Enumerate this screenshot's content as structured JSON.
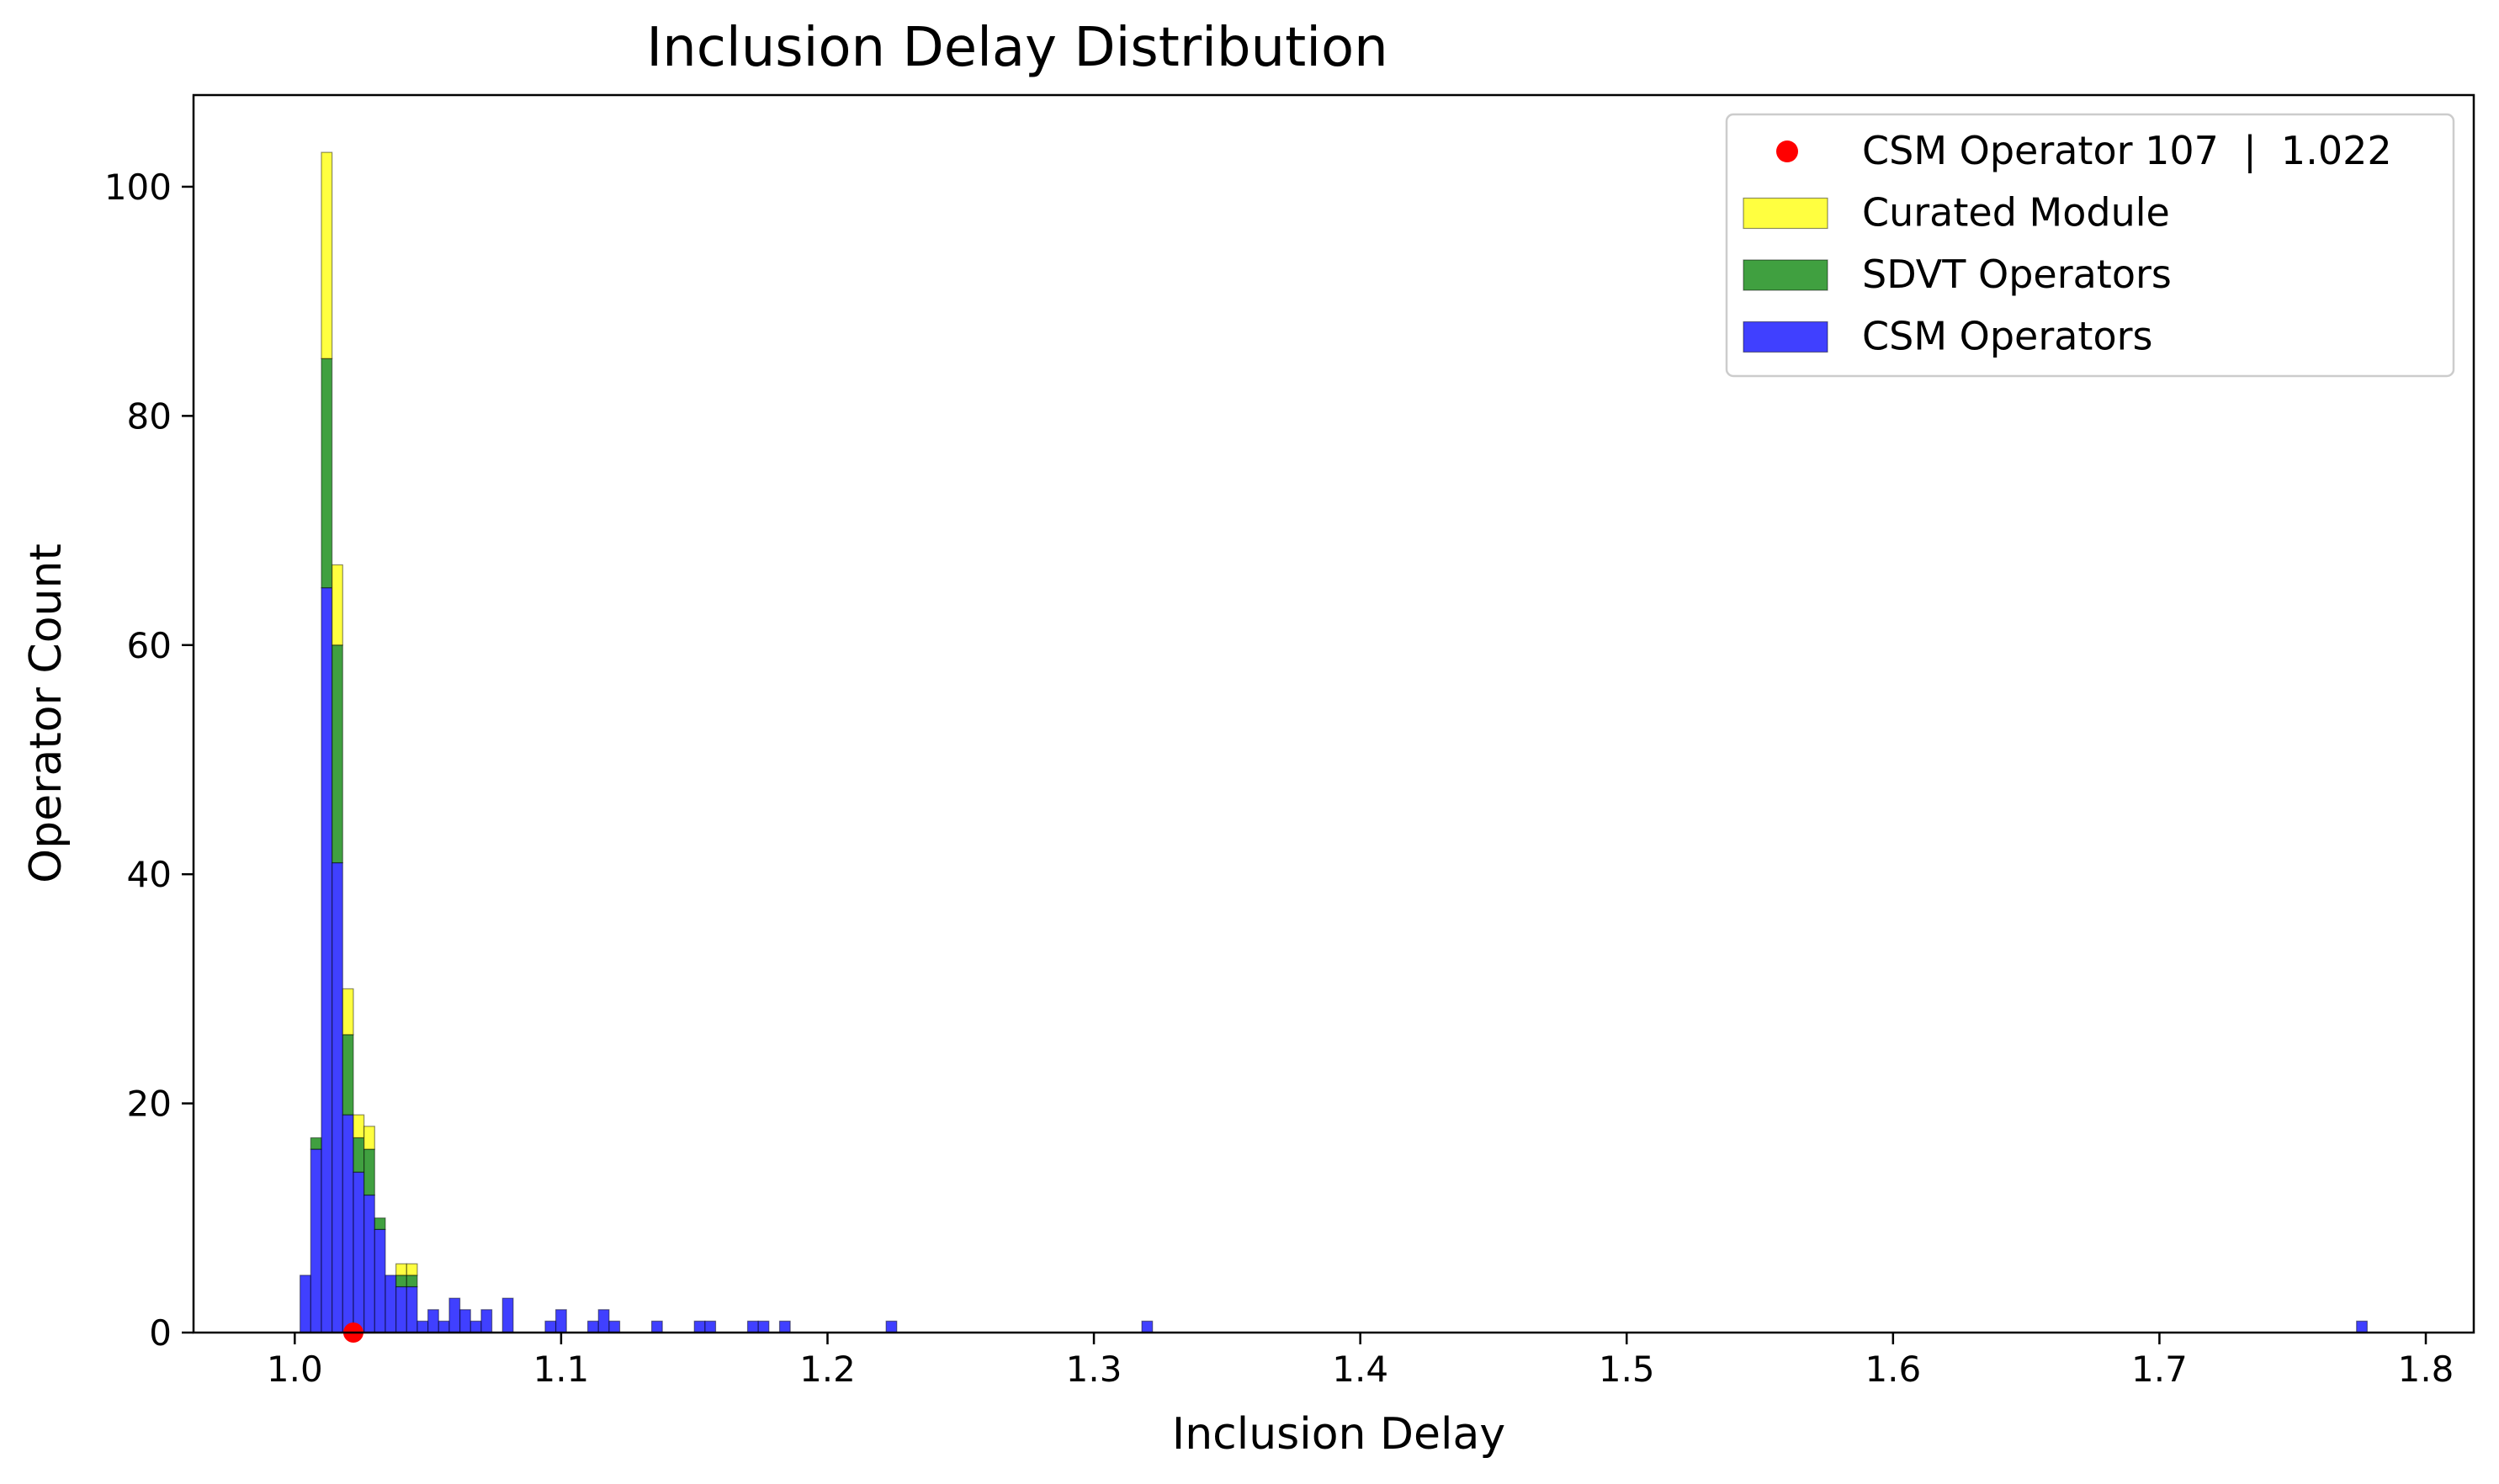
{
  "chart_data": {
    "type": "histogram",
    "title": "Inclusion Delay Distribution",
    "xlabel": "Inclusion Delay",
    "ylabel": "Operator Count",
    "xlim": [
      0.962,
      1.818
    ],
    "ylim": [
      0,
      108
    ],
    "xticks": [
      1.0,
      1.1,
      1.2,
      1.3,
      1.4,
      1.5,
      1.6,
      1.7,
      1.8
    ],
    "yticks": [
      0,
      20,
      40,
      60,
      80,
      100
    ],
    "bin_width": 0.004,
    "grid": false,
    "legend_position": "upper right",
    "stacking": "stacked: CSM Operators (bottom), SDVT Operators, Curated Module (top)",
    "colors": {
      "csm": "#0000ff",
      "sdvt": "#008000",
      "curated": "#ffff00",
      "highlight": "#ff0000"
    },
    "highlight_point": {
      "label": "CSM Operator 107  |  1.022",
      "x": 1.022,
      "y": 0
    },
    "series": [
      {
        "name": "CSM Operators",
        "color": "#0000ff",
        "bins": [
          {
            "x0": 1.002,
            "x1": 1.006,
            "count": 5
          },
          {
            "x0": 1.006,
            "x1": 1.01,
            "count": 16
          },
          {
            "x0": 1.01,
            "x1": 1.014,
            "count": 65
          },
          {
            "x0": 1.014,
            "x1": 1.018,
            "count": 41
          },
          {
            "x0": 1.018,
            "x1": 1.022,
            "count": 19
          },
          {
            "x0": 1.022,
            "x1": 1.026,
            "count": 14
          },
          {
            "x0": 1.026,
            "x1": 1.03,
            "count": 12
          },
          {
            "x0": 1.03,
            "x1": 1.034,
            "count": 9
          },
          {
            "x0": 1.034,
            "x1": 1.038,
            "count": 5
          },
          {
            "x0": 1.038,
            "x1": 1.042,
            "count": 4
          },
          {
            "x0": 1.042,
            "x1": 1.046,
            "count": 4
          },
          {
            "x0": 1.046,
            "x1": 1.05,
            "count": 1
          },
          {
            "x0": 1.05,
            "x1": 1.054,
            "count": 2
          },
          {
            "x0": 1.054,
            "x1": 1.058,
            "count": 1
          },
          {
            "x0": 1.058,
            "x1": 1.062,
            "count": 3
          },
          {
            "x0": 1.062,
            "x1": 1.066,
            "count": 2
          },
          {
            "x0": 1.066,
            "x1": 1.07,
            "count": 1
          },
          {
            "x0": 1.07,
            "x1": 1.074,
            "count": 2
          },
          {
            "x0": 1.078,
            "x1": 1.082,
            "count": 3
          },
          {
            "x0": 1.094,
            "x1": 1.098,
            "count": 1
          },
          {
            "x0": 1.098,
            "x1": 1.102,
            "count": 2
          },
          {
            "x0": 1.11,
            "x1": 1.114,
            "count": 1
          },
          {
            "x0": 1.114,
            "x1": 1.118,
            "count": 2
          },
          {
            "x0": 1.118,
            "x1": 1.122,
            "count": 1
          },
          {
            "x0": 1.134,
            "x1": 1.138,
            "count": 1
          },
          {
            "x0": 1.15,
            "x1": 1.154,
            "count": 1
          },
          {
            "x0": 1.154,
            "x1": 1.158,
            "count": 1
          },
          {
            "x0": 1.17,
            "x1": 1.174,
            "count": 1
          },
          {
            "x0": 1.174,
            "x1": 1.178,
            "count": 1
          },
          {
            "x0": 1.182,
            "x1": 1.186,
            "count": 1
          },
          {
            "x0": 1.222,
            "x1": 1.226,
            "count": 1
          },
          {
            "x0": 1.318,
            "x1": 1.322,
            "count": 1
          },
          {
            "x0": 1.774,
            "x1": 1.778,
            "count": 1
          }
        ]
      },
      {
        "name": "SDVT Operators",
        "color": "#008000",
        "bins": [
          {
            "x0": 1.006,
            "x1": 1.01,
            "count": 1
          },
          {
            "x0": 1.01,
            "x1": 1.014,
            "count": 20
          },
          {
            "x0": 1.014,
            "x1": 1.018,
            "count": 19
          },
          {
            "x0": 1.018,
            "x1": 1.022,
            "count": 7
          },
          {
            "x0": 1.022,
            "x1": 1.026,
            "count": 3
          },
          {
            "x0": 1.026,
            "x1": 1.03,
            "count": 4
          },
          {
            "x0": 1.03,
            "x1": 1.034,
            "count": 1
          },
          {
            "x0": 1.038,
            "x1": 1.042,
            "count": 1
          },
          {
            "x0": 1.042,
            "x1": 1.046,
            "count": 1
          }
        ]
      },
      {
        "name": "Curated Module",
        "color": "#ffff00",
        "bins": [
          {
            "x0": 1.01,
            "x1": 1.014,
            "count": 18
          },
          {
            "x0": 1.014,
            "x1": 1.018,
            "count": 7
          },
          {
            "x0": 1.018,
            "x1": 1.022,
            "count": 4
          },
          {
            "x0": 1.022,
            "x1": 1.026,
            "count": 2
          },
          {
            "x0": 1.026,
            "x1": 1.03,
            "count": 2
          },
          {
            "x0": 1.038,
            "x1": 1.042,
            "count": 1
          },
          {
            "x0": 1.042,
            "x1": 1.046,
            "count": 1
          }
        ]
      }
    ],
    "legend": [
      {
        "label": "CSM Operator 107  |  1.022",
        "kind": "point",
        "color": "#ff0000"
      },
      {
        "label": "Curated Module",
        "kind": "patch",
        "color": "#ffff00"
      },
      {
        "label": "SDVT Operators",
        "kind": "patch",
        "color": "#008000"
      },
      {
        "label": "CSM Operators",
        "kind": "patch",
        "color": "#0000ff"
      }
    ]
  }
}
